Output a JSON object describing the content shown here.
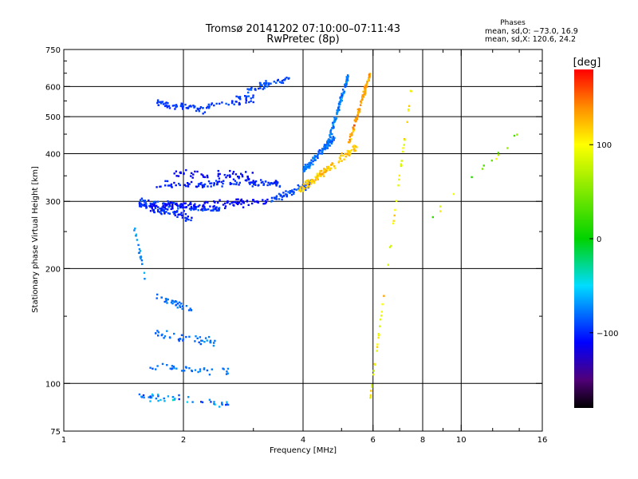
{
  "chart_data": {
    "type": "scatter",
    "title": "Tromsø 20141202 07:10:00–07:11:43",
    "subtitle": "RwPretec (8p)",
    "xlabel": "Frequency [MHz]",
    "ylabel": "Stationary phase Virtual Height [km]",
    "x_scale": "log",
    "y_scale": "log",
    "xlim": [
      1,
      16
    ],
    "ylim": [
      75,
      750
    ],
    "x_ticks": [
      1,
      2,
      4,
      6,
      8,
      10,
      16
    ],
    "y_ticks": [
      75,
      100,
      200,
      300,
      400,
      500,
      600,
      750
    ],
    "x_minor_ticks": [
      3,
      5,
      7,
      9,
      12,
      14
    ],
    "y_minor_ticks": [
      150,
      250,
      350,
      450,
      550,
      650,
      700
    ],
    "grid_x": [
      2,
      4,
      6,
      8,
      10
    ],
    "grid_y": [
      100,
      200,
      300,
      400,
      500,
      600
    ],
    "stats": {
      "heading": "Phases",
      "line_o": "mean, sd,O: −73.0, 16.9",
      "line_x": "mean, sd,X: 120.6, 24.2"
    },
    "colorbar": {
      "label": "[deg]",
      "range": [
        -180,
        180
      ],
      "ticks": [
        100,
        0,
        -100
      ],
      "tick_labels": [
        "100",
        "0",
        "−100"
      ]
    },
    "series": [
      {
        "freq_range": [
          1.55,
          2.1
        ],
        "height_range": [
          295,
          270
        ],
        "phase_mean": -100,
        "phase_sd": 14,
        "count": 80
      },
      {
        "freq_range": [
          1.55,
          2.5
        ],
        "height_range": [
          300,
          285
        ],
        "phase_mean": -95,
        "phase_sd": 16,
        "count": 90
      },
      {
        "freq_range": [
          1.65,
          3.3
        ],
        "height_range": [
          290,
          300
        ],
        "phase_mean": -110,
        "phase_sd": 10,
        "count": 110
      },
      {
        "freq_range": [
          1.7,
          3.5
        ],
        "height_range": [
          330,
          335
        ],
        "phase_mean": -100,
        "phase_sd": 15,
        "count": 110
      },
      {
        "freq_range": [
          3.3,
          4.2
        ],
        "height_range": [
          300,
          335
        ],
        "phase_mean": -90,
        "phase_sd": 15,
        "count": 60
      },
      {
        "freq_range": [
          1.85,
          3.0
        ],
        "height_range": [
          355,
          350
        ],
        "phase_mean": -110,
        "phase_sd": 12,
        "count": 50
      },
      {
        "freq_range": [
          1.7,
          2.3
        ],
        "height_range": [
          545,
          520
        ],
        "phase_mean": -95,
        "phase_sd": 14,
        "count": 60
      },
      {
        "freq_range": [
          2.3,
          3.0
        ],
        "height_range": [
          535,
          560
        ],
        "phase_mean": -95,
        "phase_sd": 14,
        "count": 40
      },
      {
        "freq_range": [
          2.9,
          3.7
        ],
        "height_range": [
          590,
          630
        ],
        "phase_mean": -90,
        "phase_sd": 14,
        "count": 45
      },
      {
        "freq_range": [
          4.0,
          4.8
        ],
        "height_range": [
          360,
          440
        ],
        "phase_mean": -80,
        "phase_sd": 20,
        "count": 100
      },
      {
        "freq_range": [
          4.6,
          5.2
        ],
        "height_range": [
          420,
          640
        ],
        "phase_mean": -75,
        "phase_sd": 22,
        "count": 110
      },
      {
        "freq_range": [
          3.9,
          5.5
        ],
        "height_range": [
          320,
          420
        ],
        "phase_mean": 120,
        "phase_sd": 20,
        "count": 120
      },
      {
        "freq_range": [
          5.2,
          5.9
        ],
        "height_range": [
          420,
          650
        ],
        "phase_mean": 135,
        "phase_sd": 30,
        "count": 90
      },
      {
        "freq_range": [
          1.7,
          2.1
        ],
        "height_range": [
          170,
          155
        ],
        "phase_mean": -80,
        "phase_sd": 15,
        "count": 35
      },
      {
        "freq_range": [
          1.7,
          2.4
        ],
        "height_range": [
          135,
          128
        ],
        "phase_mean": -80,
        "phase_sd": 18,
        "count": 40
      },
      {
        "freq_range": [
          1.6,
          2.6
        ],
        "height_range": [
          110,
          108
        ],
        "phase_mean": -80,
        "phase_sd": 20,
        "count": 35
      },
      {
        "freq_range": [
          1.55,
          2.6
        ],
        "height_range": [
          93,
          88
        ],
        "phase_mean": -70,
        "phase_sd": 50,
        "count": 45
      },
      {
        "freq_range": [
          1.5,
          1.6
        ],
        "height_range": [
          260,
          190
        ],
        "phase_mean": -70,
        "phase_sd": 20,
        "count": 20
      },
      {
        "freq_range": [
          5.9,
          7.5
        ],
        "height_range": [
          90,
          600
        ],
        "phase_mean": 100,
        "phase_sd": 40,
        "count": 50
      },
      {
        "freq_range": [
          8.0,
          14.0
        ],
        "height_range": [
          260,
          450
        ],
        "phase_mean": 60,
        "phase_sd": 80,
        "count": 14
      }
    ]
  }
}
